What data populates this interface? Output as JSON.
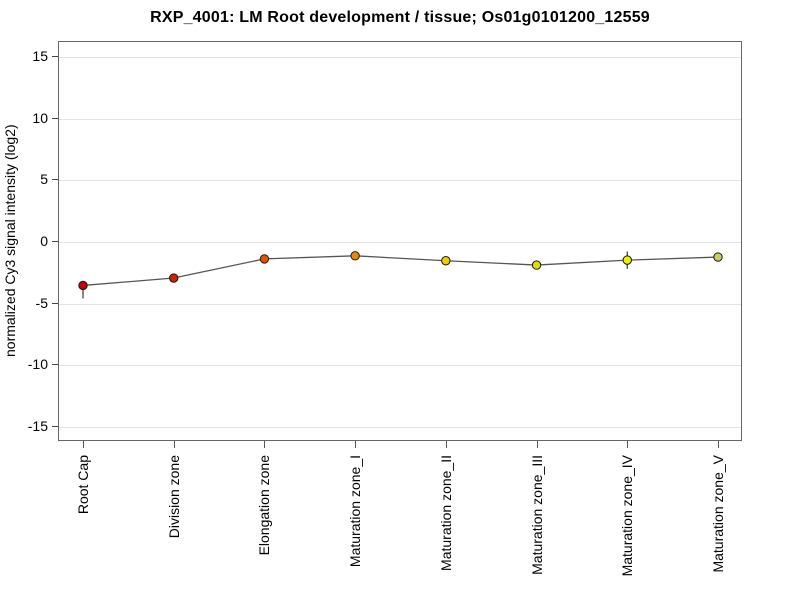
{
  "chart_data": {
    "type": "line",
    "title": "RXP_4001: LM Root development / tissue; Os01g0101200_12559",
    "xlabel": "",
    "ylabel": "normalized Cy3 signal intensity (log2)",
    "categories": [
      "Root Cap",
      "Division zone",
      "Elongation zone",
      "Maturation zone_I",
      "Maturation zone_II",
      "Maturation zone_III",
      "Maturation zone_IV",
      "Maturation zone_V"
    ],
    "values": [
      -3.6,
      -3.0,
      -1.45,
      -1.2,
      -1.6,
      -1.95,
      -1.55,
      -1.3
    ],
    "error_plus": [
      0.35,
      0.35,
      0.15,
      0.25,
      0.25,
      0.3,
      0.7,
      0.2
    ],
    "error_minus": [
      1.05,
      0.35,
      0.15,
      0.25,
      0.25,
      0.3,
      0.7,
      0.2
    ],
    "point_colors": [
      "#c40000",
      "#cc2200",
      "#dd5500",
      "#ee8800",
      "#eecc00",
      "#dddd00",
      "#eeee00",
      "#cccc66"
    ],
    "ylim": [
      -16.2,
      16.2
    ],
    "yticks": [
      -15,
      -10,
      -5,
      0,
      5,
      10,
      15
    ],
    "grid": "horizontal",
    "legend": "none",
    "line_color": "#555555",
    "error_bar_color": "#444444",
    "marker_outline_color": "#1a1a1a",
    "grid_color": "#e3e3e3",
    "axis_box_color": "#666666"
  }
}
